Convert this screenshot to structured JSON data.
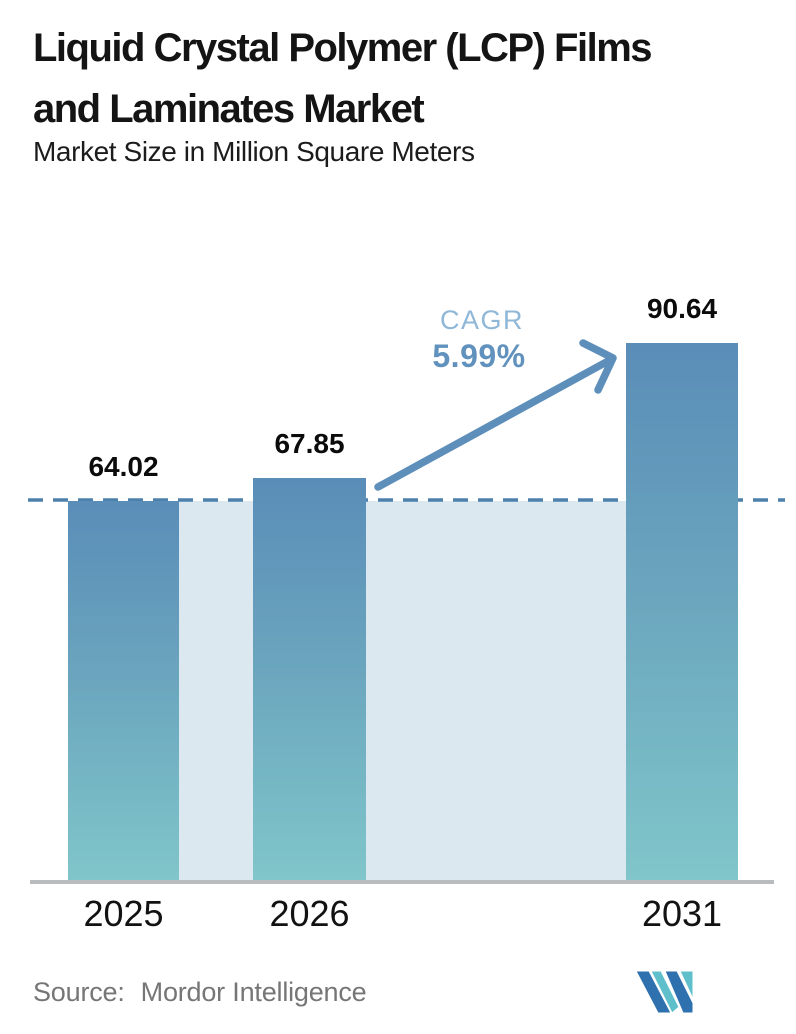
{
  "header": {
    "title_line1": "Liquid Crystal Polymer (LCP) Films",
    "title_line2": "and Laminates Market",
    "subtitle": "Market Size in Million Square Meters"
  },
  "chart_data": {
    "type": "bar",
    "title": "Liquid Crystal Polymer (LCP) Films and Laminates Market",
    "subtitle": "Market Size in Million Square Meters",
    "unit": "Million Square Meters",
    "categories": [
      "2025",
      "2026",
      "2031"
    ],
    "values": [
      64.02,
      67.85,
      90.64
    ],
    "value_labels": [
      "64.02",
      "67.85",
      "90.64"
    ],
    "ylim": [
      0,
      100
    ],
    "grid": false,
    "legend": "none",
    "annotations": {
      "cagr_label": "CAGR",
      "cagr_value": "5.99%",
      "reference_line_level": 64.02,
      "reference_line_style": "dashed",
      "arrow": "from 2026 bar top to 2031 bar top"
    }
  },
  "footer": {
    "source_label": "Source:",
    "source_value": "Mordor Intelligence",
    "logo_name": "mordor-intelligence-logo"
  },
  "colors": {
    "bar_gradient_top": "#5a8db8",
    "bar_gradient_bottom": "#80c6ca",
    "background_band": "#dce8f0",
    "dashed_line": "#4d81ac",
    "arrow": "#5d8fba",
    "cagr_label_text": "#8fb7d7",
    "cagr_value_text": "#6191bd",
    "title_text": "#141414",
    "source_text": "#767676",
    "axis_line": "#b9bcbe",
    "logo_blue": "#2e71ae",
    "logo_teal": "#5fc0cb"
  }
}
